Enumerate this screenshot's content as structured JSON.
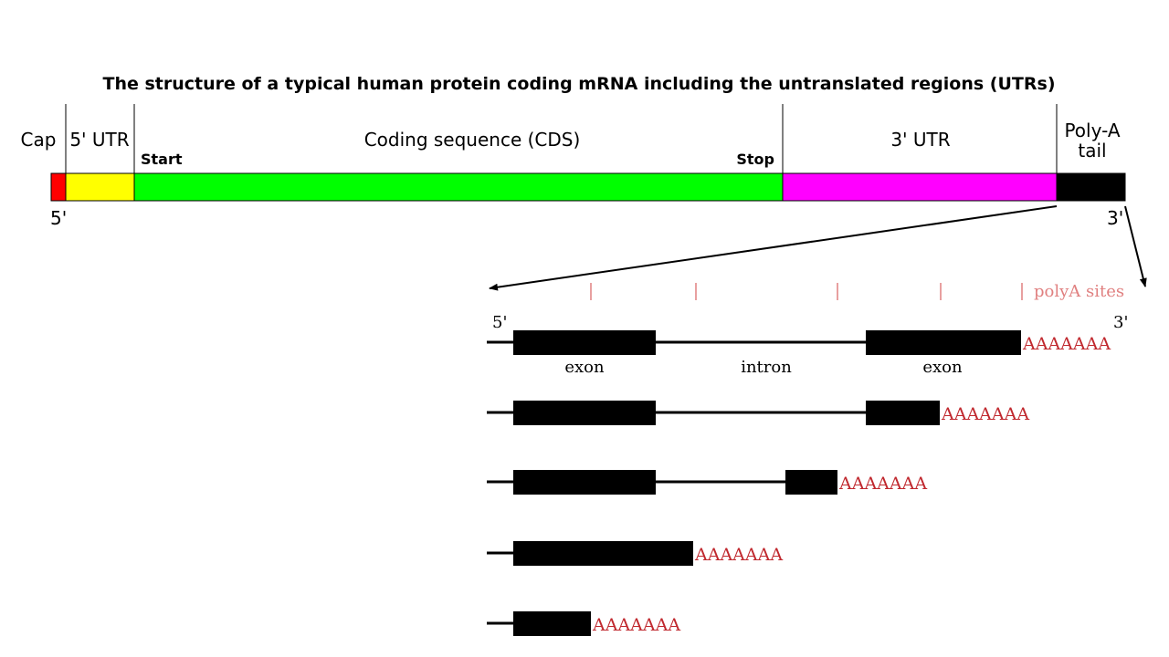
{
  "title": "The structure of a typical human protein coding mRNA including the untranslated regions (UTRs)",
  "mrna": {
    "segments": [
      {
        "key": "cap",
        "label": "Cap",
        "color": "#ff0000"
      },
      {
        "key": "utr5",
        "label": "5' UTR",
        "color": "#ffff00"
      },
      {
        "key": "cds",
        "label": "Coding sequence (CDS)",
        "color": "#00ff00"
      },
      {
        "key": "utr3",
        "label": "3' UTR",
        "color": "#ff00ff"
      },
      {
        "key": "polya",
        "label_line1": "Poly-A",
        "label_line2": "tail",
        "color": "#000000"
      }
    ],
    "start_label": "Start",
    "stop_label": "Stop",
    "end5_label": "5'",
    "end3_label": "3'"
  },
  "detail": {
    "polya_sites_label": "polyA sites",
    "polya_sites_color": "#e08080",
    "end5_label": "5'",
    "end3_label": "3'",
    "exon_label_left": "exon",
    "intron_label": "intron",
    "exon_label_right": "exon",
    "polya_tail_text": "AAAAAAA",
    "polya_tail_color": "#c0282e",
    "isoform_count": 5
  }
}
